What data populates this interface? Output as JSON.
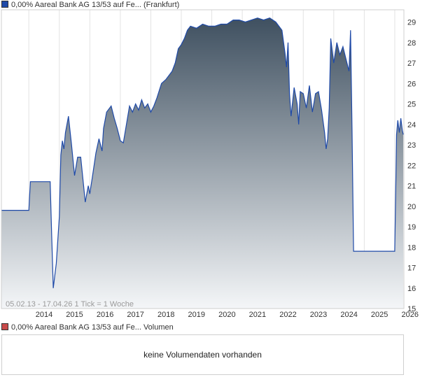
{
  "price_legend": {
    "label": "0,00% Aareal Bank AG 13/53 auf Fe... (Frankfurt)",
    "color": "#1f4aa8"
  },
  "range_info": "05.02.13 - 17.04.26   1 Tick = 1 Woche",
  "volume_legend": {
    "label": "0,00% Aareal Bank AG 13/53 auf Fe... Volumen",
    "color": "#c84a4a"
  },
  "volume_message": "keine Volumendaten vorhanden",
  "chart_data": {
    "type": "area",
    "line_color": "#1f4aa8",
    "fill_top_color": "#3f5060",
    "fill_bottom_color": "#f4f6f8",
    "ylim": [
      15,
      29.6
    ],
    "xlim": [
      2013.1,
      2026.3
    ],
    "y_ticks": [
      15,
      16,
      17,
      18,
      19,
      20,
      21,
      22,
      23,
      24,
      25,
      26,
      27,
      28,
      29
    ],
    "x_ticks": [
      2014,
      2015,
      2016,
      2017,
      2018,
      2019,
      2020,
      2021,
      2022,
      2023,
      2024,
      2025,
      2026
    ],
    "grid": "vertical",
    "series": [
      {
        "x": [
          2013.1,
          2014.0,
          2014.05,
          2014.7,
          2014.75,
          2014.8,
          2014.9,
          2015.0,
          2015.05,
          2015.1,
          2015.15,
          2015.2,
          2015.3,
          2015.4,
          2015.5,
          2015.6,
          2015.7,
          2015.85,
          2015.95,
          2016.0,
          2016.1,
          2016.2,
          2016.3,
          2016.4,
          2016.45,
          2016.55,
          2016.7,
          2016.8,
          2016.9,
          2017.0,
          2017.1,
          2017.2,
          2017.3,
          2017.4,
          2017.5,
          2017.6,
          2017.7,
          2017.8,
          2017.9,
          2018.0,
          2018.1,
          2018.2,
          2018.35,
          2018.5,
          2018.7,
          2018.8,
          2018.9,
          2019.0,
          2019.1,
          2019.2,
          2019.3,
          2019.5,
          2019.7,
          2019.9,
          2020.1,
          2020.3,
          2020.5,
          2020.7,
          2020.9,
          2021.1,
          2021.3,
          2021.5,
          2021.7,
          2021.9,
          2022.1,
          2022.3,
          2022.4,
          2022.45,
          2022.5,
          2022.55,
          2022.6,
          2022.7,
          2022.8,
          2022.85,
          2022.9,
          2023.0,
          2023.1,
          2023.2,
          2023.3,
          2023.4,
          2023.5,
          2023.6,
          2023.7,
          2023.75,
          2023.8,
          2023.85,
          2023.9,
          2024.0,
          2024.1,
          2024.2,
          2024.3,
          2024.4,
          2024.5,
          2024.55,
          2024.6,
          2024.65,
          2024.7,
          2024.75,
          2025.0,
          2025.5,
          2026.0,
          2026.03,
          2026.06,
          2026.1,
          2026.15,
          2026.2,
          2026.25,
          2026.28
        ],
        "y": [
          19.8,
          19.8,
          21.2,
          21.2,
          18.5,
          16.0,
          17.2,
          19.5,
          22.5,
          23.2,
          22.8,
          23.6,
          24.4,
          23.0,
          21.5,
          22.4,
          22.4,
          20.2,
          21.0,
          20.6,
          21.6,
          22.6,
          23.3,
          22.7,
          23.8,
          24.6,
          24.9,
          24.3,
          23.8,
          23.2,
          23.1,
          24.0,
          24.9,
          24.6,
          25.0,
          24.7,
          25.2,
          24.8,
          25.0,
          24.6,
          24.9,
          25.3,
          26.0,
          26.2,
          26.6,
          27.0,
          27.7,
          27.9,
          28.2,
          28.6,
          28.8,
          28.7,
          28.9,
          28.8,
          28.8,
          28.9,
          28.9,
          29.1,
          29.1,
          29.0,
          29.1,
          29.2,
          29.1,
          29.2,
          29.0,
          28.6,
          27.5,
          26.8,
          28.0,
          25.5,
          24.4,
          25.8,
          25.0,
          24.0,
          25.6,
          25.5,
          24.8,
          25.9,
          24.6,
          25.5,
          25.6,
          24.7,
          23.6,
          22.8,
          23.3,
          24.8,
          28.2,
          27.0,
          28.0,
          27.4,
          27.8,
          27.2,
          26.6,
          28.6,
          23.8,
          17.8,
          17.8,
          17.8,
          17.8,
          17.8,
          17.8,
          20.5,
          23.5,
          24.2,
          23.6,
          24.3,
          23.7,
          23.5
        ]
      }
    ]
  }
}
